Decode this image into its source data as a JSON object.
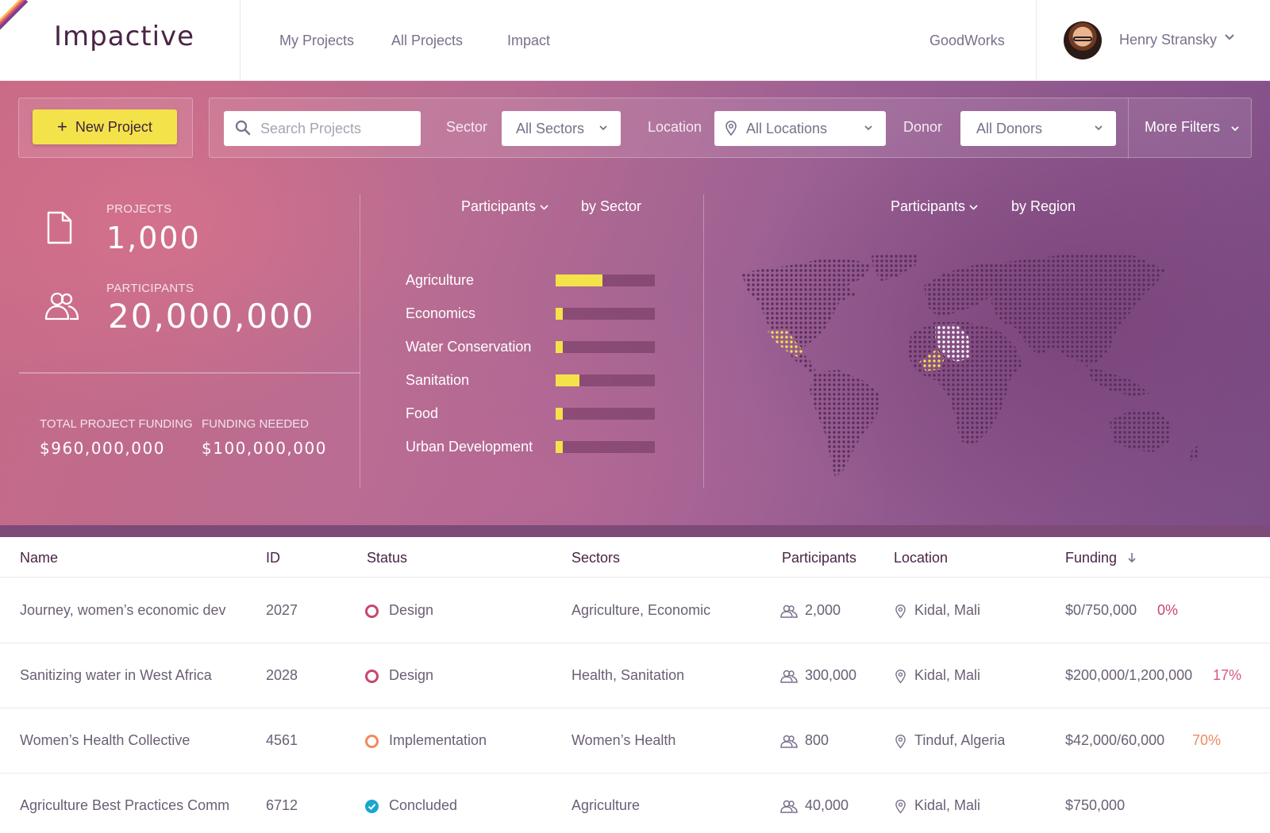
{
  "app": {
    "logo": "Impactive"
  },
  "nav": {
    "links": [
      "My Projects",
      "All Projects",
      "Impact"
    ],
    "org": "GoodWorks",
    "user_name": "Henry Stransky"
  },
  "toolbar": {
    "new_project_label": "New Project",
    "search_placeholder": "Search Projects",
    "sector_label": "Sector",
    "sector_value": "All Sectors",
    "location_label": "Location",
    "location_value": "All Locations",
    "donor_label": "Donor",
    "donor_value": "All Donors",
    "more_filters_label": "More Filters"
  },
  "stats": {
    "projects_label": "PROJECTS",
    "projects_value": "1,000",
    "participants_label": "PARTICIPANTS",
    "participants_value": "20,000,000",
    "funding_label": "TOTAL PROJECT FUNDING",
    "funding_value": "$960,000,000",
    "needed_label": "FUNDING NEEDED",
    "needed_value": "$100,000,000"
  },
  "sector_panel": {
    "metric": "Participants",
    "by": "by Sector"
  },
  "region_panel": {
    "metric": "Participants",
    "by": "by Region"
  },
  "chart_data": {
    "type": "bar",
    "categories": [
      "Agriculture",
      "Economics",
      "Water Conservation",
      "Sanitation",
      "Food",
      "Urban Development"
    ],
    "values": [
      0.47,
      0.07,
      0.07,
      0.24,
      0.06,
      0.07
    ],
    "ylim": [
      0,
      1
    ]
  },
  "colors": {
    "accent_yellow": "#f4e24a",
    "brand_plum": "#4a2446",
    "status_design": "#c8466a",
    "status_implementation": "#f08a5d",
    "status_concluded": "#1aa6cf"
  },
  "table": {
    "headers": [
      "Name",
      "ID",
      "Status",
      "Sectors",
      "Participants",
      "Location",
      "Funding"
    ],
    "rows": [
      {
        "name": "Journey, women’s economic dev",
        "id": "2027",
        "status": "Design",
        "sectors": "Agriculture, Economic",
        "participants": "2,000",
        "location": "Kidal, Mali",
        "funding": "$0/750,000",
        "pct": "0%"
      },
      {
        "name": "Sanitizing water in West Africa",
        "id": "2028",
        "status": "Design",
        "sectors": "Health, Sanitation",
        "participants": "300,000",
        "location": "Kidal, Mali",
        "funding": "$200,000/1,200,000",
        "pct": "17%"
      },
      {
        "name": "Women’s Health Collective",
        "id": "4561",
        "status": "Implementation",
        "sectors": "Women’s Health",
        "participants": "800",
        "location": "Tinduf, Algeria",
        "funding": "$42,000/60,000",
        "pct": "70%"
      },
      {
        "name": "Agriculture Best Practices Comm",
        "id": "6712",
        "status": "Concluded",
        "sectors": "Agriculture",
        "participants": "40,000",
        "location": "Kidal, Mali",
        "funding": "$750,000",
        "pct": ""
      }
    ]
  }
}
